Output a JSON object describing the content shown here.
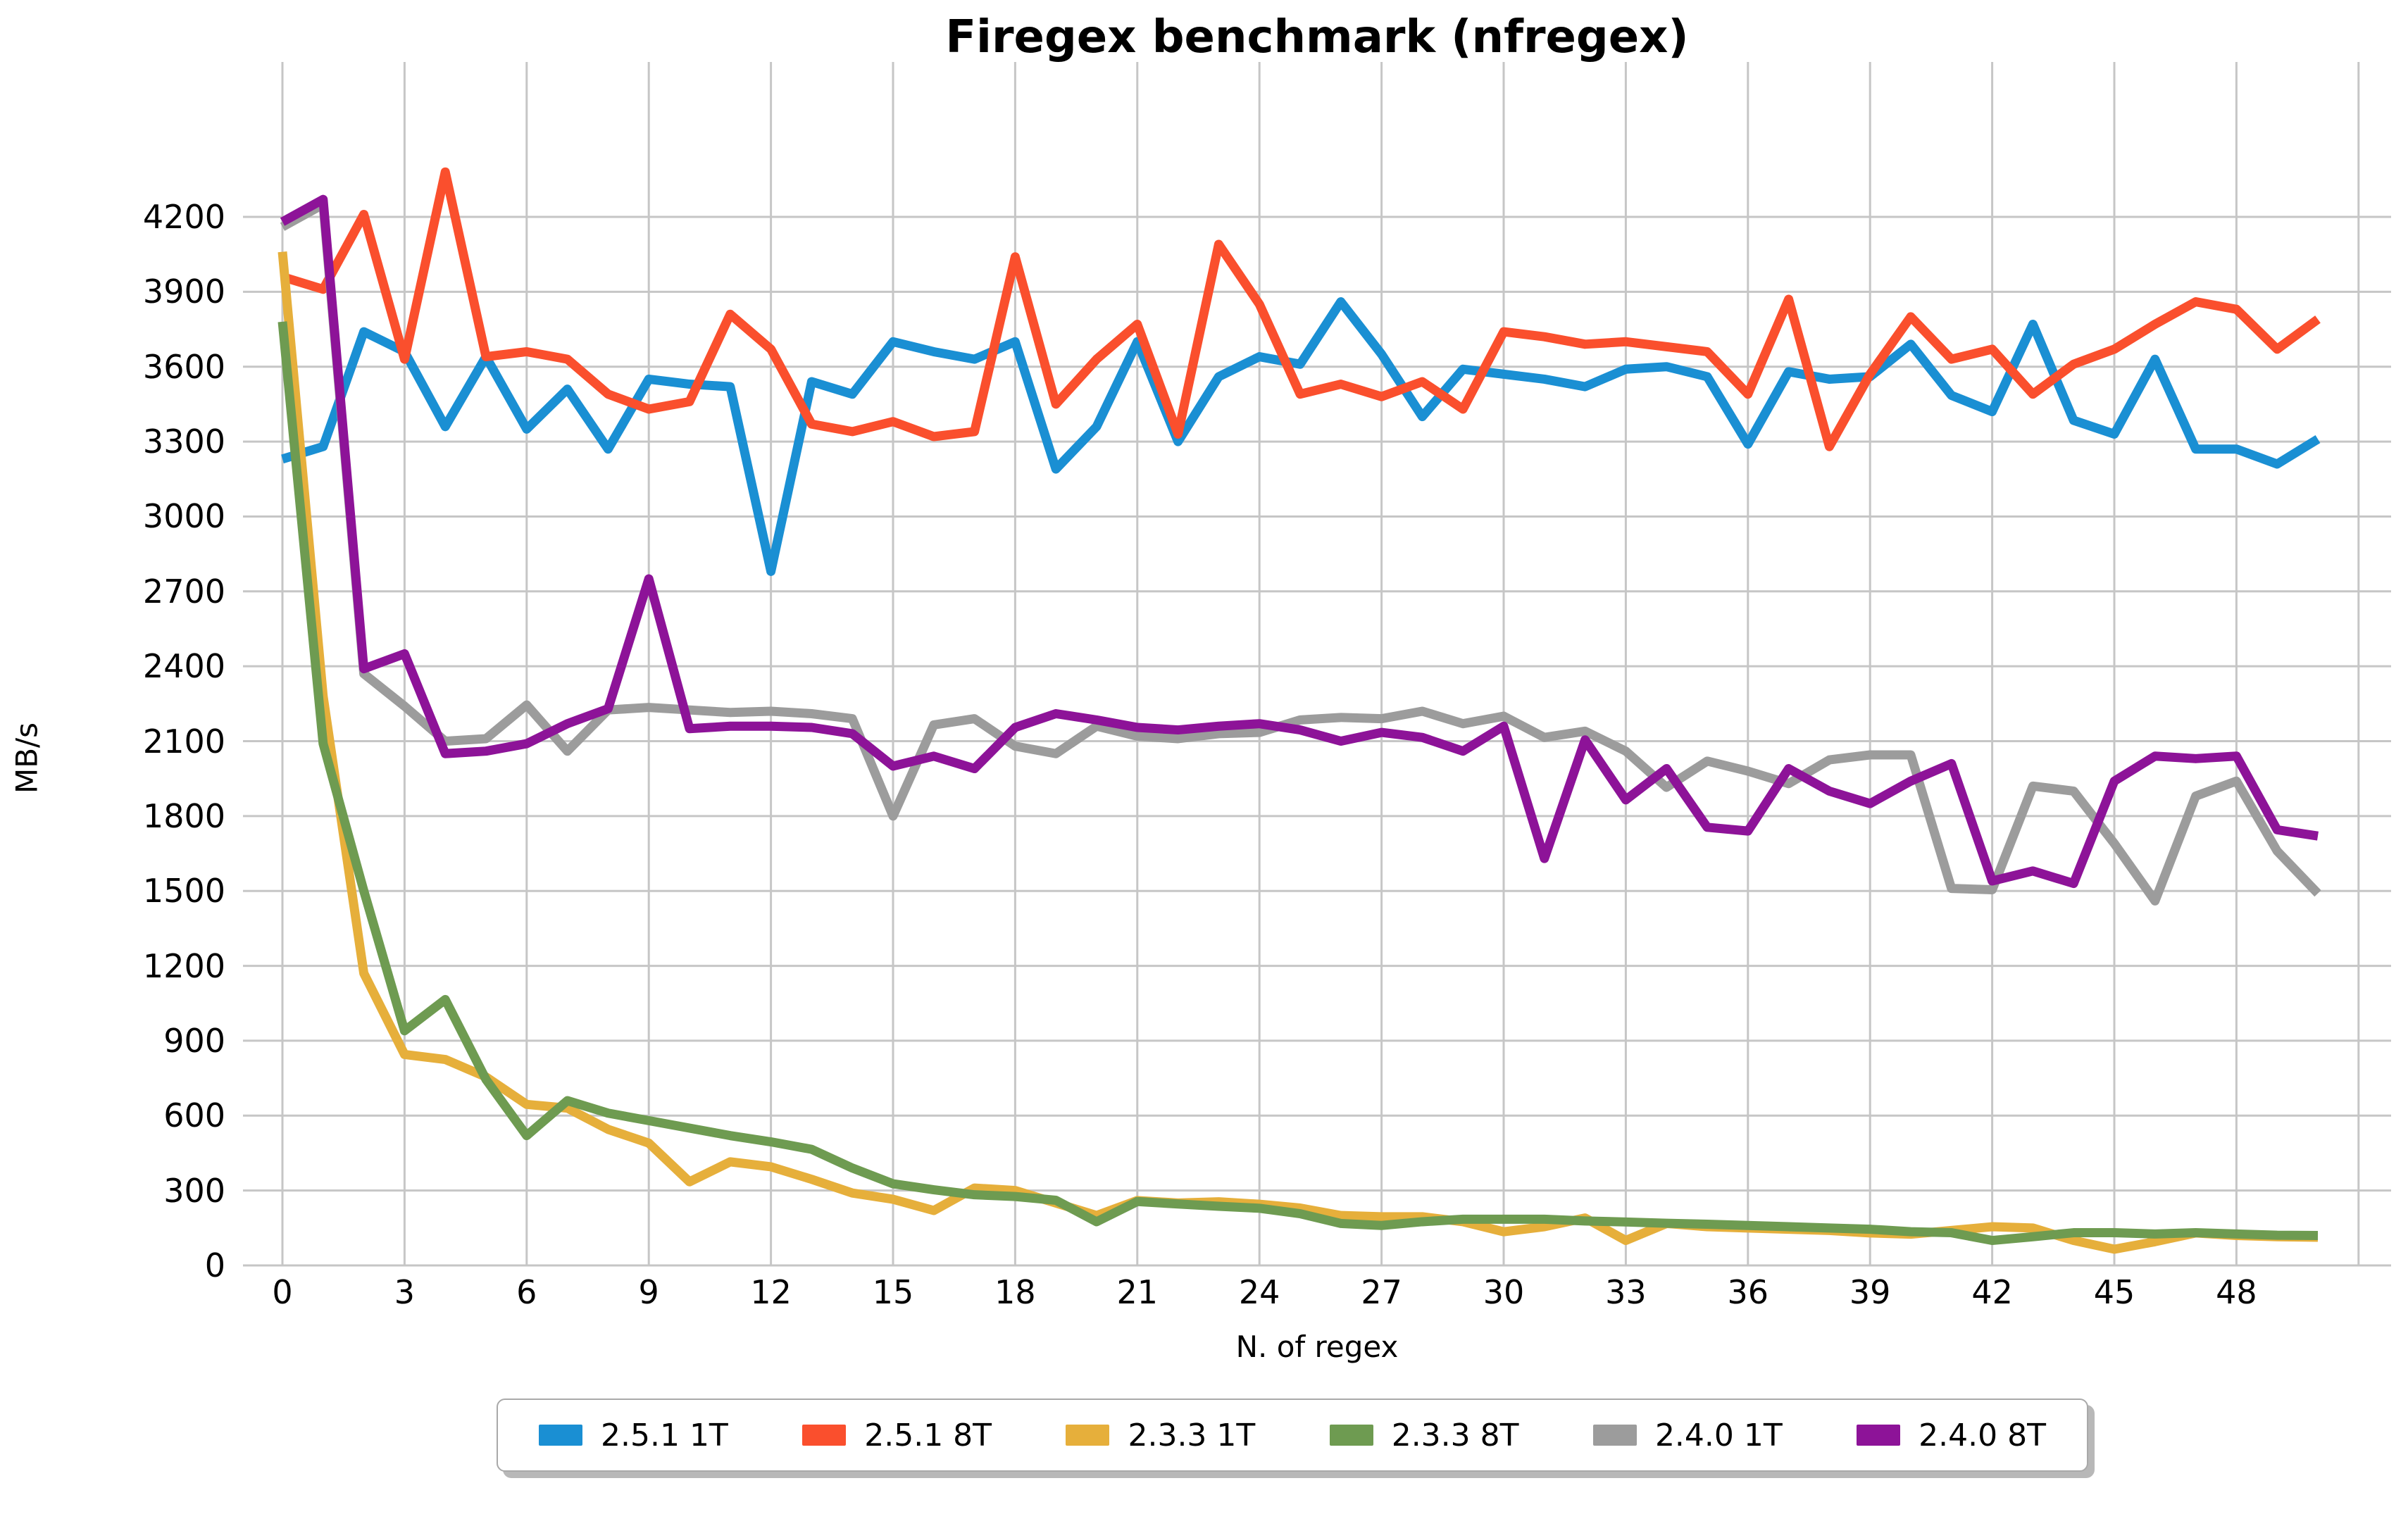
{
  "chart_data": {
    "type": "line",
    "title": "Firegex benchmark (nfregex)",
    "xlabel": "N. of regex",
    "ylabel": "MB/s",
    "x_ticks": [
      0,
      3,
      6,
      9,
      12,
      15,
      18,
      21,
      24,
      27,
      30,
      33,
      36,
      39,
      42,
      45,
      48
    ],
    "y_ticks": [
      0,
      300,
      600,
      900,
      1200,
      1500,
      1800,
      2100,
      2400,
      2700,
      3000,
      3300,
      3600,
      3900,
      4200
    ],
    "xlim": [
      -1,
      51.8
    ],
    "ylim": [
      0,
      4820
    ],
    "grid": true,
    "grid_color": "#c6c6c6",
    "legend_position": "bottom",
    "x": [
      0,
      1,
      2,
      3,
      4,
      5,
      6,
      7,
      8,
      9,
      10,
      11,
      12,
      13,
      14,
      15,
      16,
      17,
      18,
      19,
      20,
      21,
      22,
      23,
      24,
      25,
      26,
      27,
      28,
      29,
      30,
      31,
      32,
      33,
      34,
      35,
      36,
      37,
      38,
      39,
      40,
      41,
      42,
      43,
      44,
      45,
      46,
      47,
      48,
      49,
      50
    ],
    "series": [
      {
        "name": "2.5.1 1T",
        "color": "#1a8fd3",
        "values": [
          3230,
          3280,
          3740,
          3660,
          3360,
          3640,
          3350,
          3510,
          3270,
          3550,
          3530,
          3520,
          2780,
          3540,
          3490,
          3700,
          3660,
          3630,
          3700,
          3190,
          3360,
          3700,
          3300,
          3560,
          3640,
          3610,
          3860,
          3650,
          3400,
          3590,
          3570,
          3550,
          3520,
          3590,
          3600,
          3560,
          3290,
          3580,
          3550,
          3560,
          3690,
          3485,
          3420,
          3770,
          3385,
          3330,
          3630,
          3270,
          3270,
          3210,
          3310
        ]
      },
      {
        "name": "2.5.1 8T",
        "color": "#fa4f2d",
        "values": [
          3960,
          3910,
          4210,
          3630,
          4380,
          3640,
          3660,
          3630,
          3490,
          3430,
          3460,
          3810,
          3670,
          3370,
          3340,
          3380,
          3320,
          3340,
          4040,
          3450,
          3630,
          3770,
          3330,
          4090,
          3850,
          3490,
          3530,
          3480,
          3540,
          3430,
          3740,
          3720,
          3690,
          3700,
          3680,
          3660,
          3490,
          3870,
          3280,
          3570,
          3800,
          3630,
          3670,
          3490,
          3610,
          3670,
          3770,
          3860,
          3830,
          3670,
          3790
        ]
      },
      {
        "name": "2.3.3 1T",
        "color": "#e6af3b",
        "values": [
          4060,
          2280,
          1170,
          845,
          825,
          755,
          645,
          630,
          545,
          490,
          335,
          415,
          395,
          345,
          290,
          265,
          220,
          310,
          300,
          250,
          200,
          260,
          250,
          255,
          245,
          230,
          200,
          195,
          195,
          175,
          135,
          155,
          190,
          100,
          168,
          155,
          150,
          145,
          140,
          130,
          125,
          140,
          155,
          150,
          100,
          65,
          95,
          130,
          120,
          115,
          113
        ]
      },
      {
        "name": "2.3.3 8T",
        "color": "#6e9b51",
        "values": [
          3780,
          2090,
          1500,
          940,
          1065,
          745,
          520,
          660,
          610,
          580,
          550,
          520,
          495,
          465,
          390,
          327,
          303,
          283,
          276,
          261,
          175,
          256,
          246,
          237,
          229,
          207,
          168,
          160,
          175,
          185,
          185,
          185,
          178,
          174,
          169,
          165,
          160,
          155,
          150,
          145,
          135,
          131,
          100,
          115,
          131,
          131,
          126,
          131,
          126,
          121,
          120
        ]
      },
      {
        "name": "2.4.0 1T",
        "color": "#9c9c9c",
        "values": [
          4160,
          4250,
          2370,
          2240,
          2100,
          2110,
          2245,
          2060,
          2225,
          2235,
          2225,
          2215,
          2220,
          2210,
          2190,
          1800,
          2165,
          2190,
          2080,
          2050,
          2160,
          2120,
          2110,
          2130,
          2135,
          2185,
          2195,
          2190,
          2220,
          2170,
          2200,
          2115,
          2140,
          2060,
          1915,
          2020,
          1980,
          1930,
          2025,
          2045,
          2045,
          1510,
          1505,
          1920,
          1900,
          1690,
          1460,
          1880,
          1940,
          1660,
          1490
        ]
      },
      {
        "name": "2.4.0 8T",
        "color": "#8d1398",
        "values": [
          4180,
          4270,
          2390,
          2450,
          2050,
          2060,
          2090,
          2170,
          2230,
          2750,
          2150,
          2160,
          2160,
          2155,
          2130,
          2000,
          2040,
          1990,
          2155,
          2210,
          2185,
          2155,
          2145,
          2160,
          2170,
          2145,
          2100,
          2135,
          2115,
          2060,
          2160,
          1630,
          2105,
          1865,
          1990,
          1755,
          1740,
          1990,
          1900,
          1850,
          1940,
          2010,
          1540,
          1580,
          1530,
          1940,
          2040,
          2030,
          2040,
          1745,
          1720
        ]
      }
    ]
  }
}
